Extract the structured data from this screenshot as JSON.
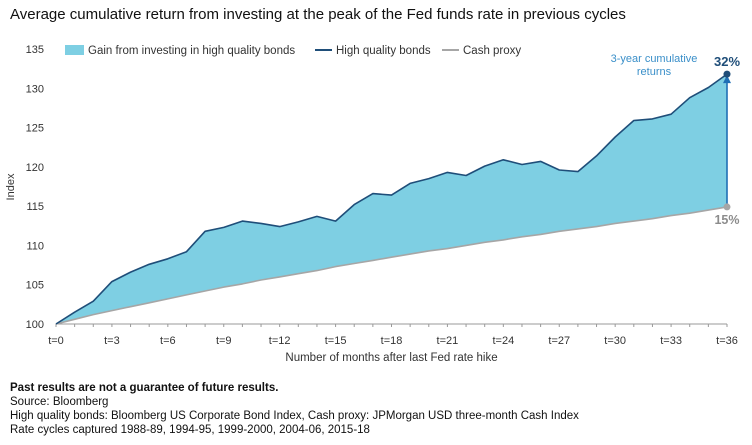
{
  "title": "Average cumulative return from investing at the peak of the Fed funds rate in previous cycles",
  "chart_data": {
    "type": "area",
    "xlabel": "Number of months after last Fed rate hike",
    "ylabel": "Index",
    "x": [
      0,
      1,
      2,
      3,
      4,
      5,
      6,
      7,
      8,
      9,
      10,
      11,
      12,
      13,
      14,
      15,
      16,
      17,
      18,
      19,
      20,
      21,
      22,
      23,
      24,
      25,
      26,
      27,
      28,
      29,
      30,
      31,
      32,
      33,
      34,
      35,
      36
    ],
    "xticks": [
      0,
      3,
      6,
      9,
      12,
      15,
      18,
      21,
      24,
      27,
      30,
      33,
      36
    ],
    "xtick_labels": [
      "t=0",
      "t=3",
      "t=6",
      "t=9",
      "t=12",
      "t=15",
      "t=18",
      "t=21",
      "t=24",
      "t=27",
      "t=30",
      "t=33",
      "t=36"
    ],
    "ylim": [
      100,
      135
    ],
    "yticks": [
      100,
      105,
      110,
      115,
      120,
      125,
      130,
      135
    ],
    "legend_position": "top",
    "series": [
      {
        "name": "High quality bonds",
        "color": "#1f4e79",
        "values": [
          100,
          101.5,
          102.9,
          105.4,
          106.6,
          107.6,
          108.3,
          109.2,
          111.8,
          112.3,
          113.1,
          112.8,
          112.4,
          113.0,
          113.7,
          113.1,
          115.2,
          116.6,
          116.4,
          117.9,
          118.5,
          119.3,
          118.9,
          120.1,
          120.9,
          120.3,
          120.7,
          119.6,
          119.4,
          121.4,
          123.8,
          125.9,
          126.1,
          126.7,
          128.8,
          130.1,
          131.8
        ]
      },
      {
        "name": "Cash proxy",
        "color": "#a6a6a6",
        "values": [
          100,
          100.6,
          101.2,
          101.7,
          102.2,
          102.7,
          103.2,
          103.7,
          104.2,
          104.7,
          105.1,
          105.6,
          106.0,
          106.4,
          106.8,
          107.3,
          107.7,
          108.1,
          108.5,
          108.9,
          109.3,
          109.6,
          110.0,
          110.4,
          110.7,
          111.1,
          111.4,
          111.8,
          112.1,
          112.4,
          112.8,
          113.1,
          113.4,
          113.8,
          114.1,
          114.5,
          114.9
        ]
      }
    ],
    "fill": {
      "name": "Gain from investing in high quality bonds",
      "color": "#7ecfe3"
    },
    "annotations": {
      "bonds_return": "32%",
      "cash_return": "15%",
      "arrow_label_line1": "3-year cumulative",
      "arrow_label_line2": "returns",
      "colors": {
        "arrow": "#1f6fb5",
        "label": "#3a8fc9",
        "cash_label": "#8c8c8c"
      }
    }
  },
  "footnotes": {
    "bold": "Past results are not a guarantee of future results.",
    "line1": "Source: Bloomberg",
    "line2": "High quality bonds: Bloomberg US Corporate Bond Index, Cash proxy: JPMorgan USD three-month Cash Index",
    "line3": "Rate cycles captured 1988-89, 1994-95, 1999-2000, 2004-06, 2015-18"
  }
}
